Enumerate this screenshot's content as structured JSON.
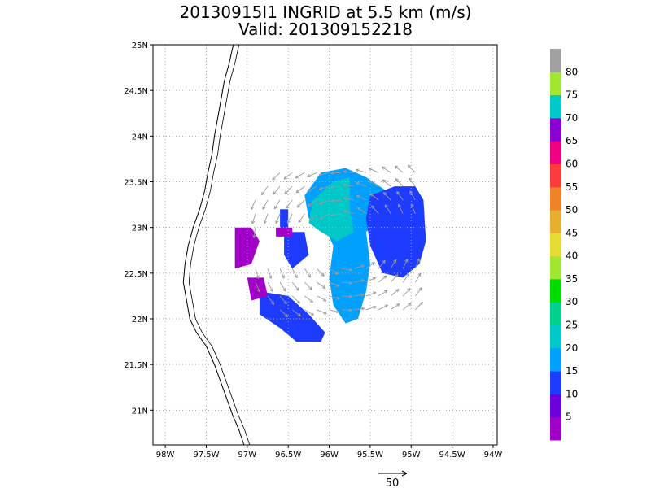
{
  "title": "20130915I1 INGRID at 5.5 km (m/s)",
  "subtitle": "Valid: 201309152218",
  "chart_data": {
    "type": "heatmap",
    "title": "20130915I1 INGRID at 5.5 km (m/s)",
    "subtitle": "Valid: 201309152218",
    "x_ticks": [
      {
        "value": -98.0,
        "label": "98W"
      },
      {
        "value": -97.5,
        "label": "97.5W"
      },
      {
        "value": -97.0,
        "label": "97W"
      },
      {
        "value": -96.5,
        "label": "96.5W"
      },
      {
        "value": -96.0,
        "label": "96W"
      },
      {
        "value": -95.5,
        "label": "95.5W"
      },
      {
        "value": -95.0,
        "label": "95W"
      },
      {
        "value": -94.5,
        "label": "94.5W"
      },
      {
        "value": -94.0,
        "label": "94W"
      }
    ],
    "y_ticks": [
      {
        "value": 21.0,
        "label": "21N"
      },
      {
        "value": 21.5,
        "label": "21.5N"
      },
      {
        "value": 22.0,
        "label": "22N"
      },
      {
        "value": 22.5,
        "label": "22.5N"
      },
      {
        "value": 23.0,
        "label": "23N"
      },
      {
        "value": 23.5,
        "label": "23.5N"
      },
      {
        "value": 24.0,
        "label": "24N"
      },
      {
        "value": 24.5,
        "label": "24.5N"
      },
      {
        "value": 25.0,
        "label": "25N"
      }
    ],
    "xlim": [
      -98.15,
      -93.95
    ],
    "ylim": [
      20.62,
      25.0
    ],
    "grid": true,
    "colorbar": {
      "labels": [
        "5",
        "10",
        "15",
        "20",
        "25",
        "30",
        "35",
        "40",
        "45",
        "50",
        "55",
        "60",
        "65",
        "70",
        "75",
        "80"
      ],
      "colors": [
        "#a000c8",
        "#6e00dc",
        "#1e3cff",
        "#00a0ff",
        "#00c8c8",
        "#00d28c",
        "#00dc00",
        "#a0e632",
        "#e6dc32",
        "#e6af2d",
        "#f08228",
        "#fa3c3c",
        "#f00082",
        "#8c00d2",
        "#00c8c8",
        "#a0e632",
        "#a0a0a0"
      ]
    },
    "reference_vector": {
      "label": "50",
      "value": 50
    },
    "coastline": [
      [
        -97.17,
        25.0
      ],
      [
        -97.22,
        24.8
      ],
      [
        -97.28,
        24.6
      ],
      [
        -97.32,
        24.4
      ],
      [
        -97.36,
        24.2
      ],
      [
        -97.4,
        24.0
      ],
      [
        -97.43,
        23.8
      ],
      [
        -97.48,
        23.6
      ],
      [
        -97.52,
        23.4
      ],
      [
        -97.58,
        23.2
      ],
      [
        -97.66,
        23.0
      ],
      [
        -97.72,
        22.8
      ],
      [
        -97.76,
        22.6
      ],
      [
        -97.78,
        22.4
      ],
      [
        -97.74,
        22.2
      ],
      [
        -97.7,
        22.0
      ],
      [
        -97.62,
        21.85
      ],
      [
        -97.5,
        21.7
      ],
      [
        -97.4,
        21.5
      ],
      [
        -97.32,
        21.3
      ],
      [
        -97.24,
        21.1
      ],
      [
        -97.18,
        20.95
      ],
      [
        -97.1,
        20.78
      ],
      [
        -97.04,
        20.62
      ]
    ],
    "wind_regions": [
      {
        "speed_class": "20-25",
        "polygon": [
          [
            -96.1,
            23.6
          ],
          [
            -95.8,
            23.65
          ],
          [
            -95.55,
            23.55
          ],
          [
            -95.3,
            23.4
          ],
          [
            -95.35,
            23.1
          ],
          [
            -95.55,
            22.95
          ],
          [
            -95.5,
            22.6
          ],
          [
            -95.55,
            22.3
          ],
          [
            -95.65,
            22.0
          ],
          [
            -95.8,
            21.95
          ],
          [
            -95.95,
            22.15
          ],
          [
            -96.0,
            22.45
          ],
          [
            -95.95,
            22.8
          ],
          [
            -96.05,
            23.0
          ],
          [
            -96.25,
            23.1
          ],
          [
            -96.3,
            23.35
          ]
        ]
      },
      {
        "speed_class": "25-30",
        "polygon": [
          [
            -96.2,
            23.3
          ],
          [
            -95.95,
            23.5
          ],
          [
            -95.75,
            23.55
          ],
          [
            -95.75,
            23.2
          ],
          [
            -95.7,
            22.95
          ],
          [
            -95.9,
            22.85
          ],
          [
            -96.1,
            22.95
          ],
          [
            -96.25,
            23.05
          ]
        ]
      },
      {
        "speed_class": "10-15",
        "polygon": [
          [
            -95.5,
            23.35
          ],
          [
            -95.2,
            23.45
          ],
          [
            -94.95,
            23.45
          ],
          [
            -94.85,
            23.3
          ],
          [
            -94.82,
            22.85
          ],
          [
            -94.9,
            22.6
          ],
          [
            -95.1,
            22.45
          ],
          [
            -95.35,
            22.5
          ],
          [
            -95.5,
            22.8
          ],
          [
            -95.55,
            23.1
          ]
        ]
      },
      {
        "speed_class": "10-15",
        "polygon": [
          [
            -96.55,
            22.95
          ],
          [
            -96.3,
            22.95
          ],
          [
            -96.25,
            22.7
          ],
          [
            -96.45,
            22.55
          ],
          [
            -96.55,
            22.7
          ]
        ]
      },
      {
        "speed_class": "10-15",
        "polygon": [
          [
            -96.85,
            22.3
          ],
          [
            -96.5,
            22.25
          ],
          [
            -96.25,
            22.05
          ],
          [
            -96.05,
            21.85
          ],
          [
            -96.1,
            21.75
          ],
          [
            -96.4,
            21.75
          ],
          [
            -96.6,
            21.9
          ],
          [
            -96.85,
            22.05
          ]
        ]
      },
      {
        "speed_class": "10-15",
        "polygon": [
          [
            -96.6,
            23.2
          ],
          [
            -96.5,
            23.2
          ],
          [
            -96.5,
            22.95
          ],
          [
            -96.6,
            22.95
          ]
        ]
      },
      {
        "speed_class": "5-10",
        "polygon": [
          [
            -97.15,
            23.0
          ],
          [
            -96.95,
            23.0
          ],
          [
            -96.85,
            22.85
          ],
          [
            -96.95,
            22.6
          ],
          [
            -97.15,
            22.55
          ]
        ]
      },
      {
        "speed_class": "5-10",
        "polygon": [
          [
            -97.0,
            22.45
          ],
          [
            -96.8,
            22.45
          ],
          [
            -96.75,
            22.25
          ],
          [
            -96.95,
            22.2
          ]
        ]
      },
      {
        "speed_class": "5-10",
        "polygon": [
          [
            -96.65,
            23.0
          ],
          [
            -96.45,
            23.0
          ],
          [
            -96.45,
            22.9
          ],
          [
            -96.65,
            22.9
          ]
        ]
      }
    ]
  }
}
